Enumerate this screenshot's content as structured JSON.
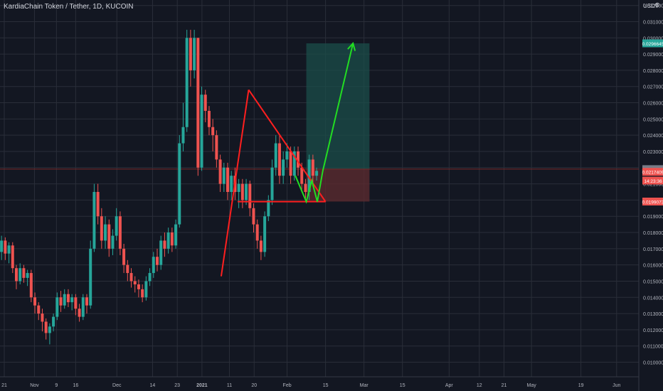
{
  "header": {
    "symbol_title": "KardiaChain Token / Tether, 1D, KUCOIN",
    "unit": "USDT",
    "settings_mark": "⚙"
  },
  "chart_data": {
    "type": "candlestick",
    "title": "KardiaChain Token / Tether, 1D, KUCOIN",
    "xlabel": "",
    "ylabel": "USDT",
    "ylim": [
      0.0095,
      0.0318
    ],
    "grid": true,
    "colors": {
      "background": "#131722",
      "grid": "#2a2e39",
      "up": "#26a69a",
      "down": "#ef5350",
      "pattern": "#ff1f1f",
      "projection": "#22dd22",
      "profit_zone": "#1b4d4a",
      "loss_zone": "#5a2a30",
      "axis_text": "#b2b5be",
      "current_price_line": "#7a2a2a"
    },
    "y_ticks": [
      "0.0320000",
      "0.0310000",
      "0.0300000",
      "0.0290000",
      "0.0280000",
      "0.0270000",
      "0.0260000",
      "0.0250000",
      "0.0240000",
      "0.0230000",
      "0.0220000",
      "0.0210000",
      "0.0200000",
      "0.0190000",
      "0.0180000",
      "0.0170000",
      "0.0160000",
      "0.0150000",
      "0.0140000",
      "0.0130000",
      "0.0120000",
      "0.0110000",
      "0.0100000"
    ],
    "x_ticks": [
      "21",
      "Nov",
      "9",
      "16",
      "Dec",
      "14",
      "23",
      "2021",
      "11",
      "20",
      "Feb",
      "15",
      "Mar",
      "15",
      "Apr",
      "12",
      "21",
      "May",
      "19",
      "Jun"
    ],
    "price_labels": [
      {
        "text": "0.0296645",
        "value": 0.0296645,
        "color": "#26a69a"
      },
      {
        "text": "0.0219082",
        "value": 0.0219082,
        "color": "#787b86"
      },
      {
        "text": "0.0217409",
        "value": 0.0217409,
        "color": "#ef5350"
      },
      {
        "text": "14:23:36",
        "value": 0.0212,
        "color": "#ef5350"
      },
      {
        "text": "0.0199073",
        "value": 0.0199073,
        "color": "#ef5350"
      }
    ],
    "candles": [
      [
        0.0168,
        0.0175,
        0.0178,
        0.0163
      ],
      [
        0.0175,
        0.0167,
        0.0177,
        0.0163
      ],
      [
        0.0167,
        0.0172,
        0.0174,
        0.0161
      ],
      [
        0.0172,
        0.0158,
        0.0174,
        0.0155
      ],
      [
        0.0158,
        0.015,
        0.016,
        0.0145
      ],
      [
        0.015,
        0.0158,
        0.0161,
        0.0148
      ],
      [
        0.0158,
        0.0152,
        0.016,
        0.0149
      ],
      [
        0.0152,
        0.0155,
        0.0157,
        0.0147
      ],
      [
        0.0155,
        0.014,
        0.0157,
        0.0137
      ],
      [
        0.014,
        0.0135,
        0.0143,
        0.013
      ],
      [
        0.0135,
        0.013,
        0.0137,
        0.0126
      ],
      [
        0.013,
        0.0125,
        0.0133,
        0.0119
      ],
      [
        0.0125,
        0.0118,
        0.0127,
        0.0114
      ],
      [
        0.0118,
        0.0122,
        0.0124,
        0.0111
      ],
      [
        0.0122,
        0.0128,
        0.013,
        0.0119
      ],
      [
        0.0128,
        0.014,
        0.0143,
        0.0126
      ],
      [
        0.014,
        0.0135,
        0.0144,
        0.0131
      ],
      [
        0.0135,
        0.0142,
        0.0145,
        0.0133
      ],
      [
        0.0142,
        0.0137,
        0.0145,
        0.0134
      ],
      [
        0.0137,
        0.014,
        0.0142,
        0.0132
      ],
      [
        0.014,
        0.0133,
        0.0142,
        0.0129
      ],
      [
        0.0133,
        0.0128,
        0.0136,
        0.0125
      ],
      [
        0.0128,
        0.014,
        0.0142,
        0.0126
      ],
      [
        0.014,
        0.0135,
        0.0142,
        0.013
      ],
      [
        0.0135,
        0.017,
        0.0175,
        0.0133
      ],
      [
        0.017,
        0.0205,
        0.021,
        0.0168
      ],
      [
        0.0205,
        0.019,
        0.021,
        0.0185
      ],
      [
        0.019,
        0.0175,
        0.0195,
        0.017
      ],
      [
        0.0175,
        0.0185,
        0.019,
        0.017
      ],
      [
        0.0185,
        0.017,
        0.0188,
        0.0165
      ],
      [
        0.017,
        0.0178,
        0.0182,
        0.0166
      ],
      [
        0.0178,
        0.019,
        0.0195,
        0.0175
      ],
      [
        0.019,
        0.017,
        0.0193,
        0.0166
      ],
      [
        0.017,
        0.016,
        0.0173,
        0.0155
      ],
      [
        0.016,
        0.0155,
        0.0163,
        0.015
      ],
      [
        0.0155,
        0.015,
        0.0158,
        0.0146
      ],
      [
        0.015,
        0.0148,
        0.0153,
        0.0143
      ],
      [
        0.0148,
        0.0145,
        0.0151,
        0.014
      ],
      [
        0.0145,
        0.014,
        0.0148,
        0.0137
      ],
      [
        0.014,
        0.015,
        0.0153,
        0.0138
      ],
      [
        0.015,
        0.0155,
        0.0158,
        0.0147
      ],
      [
        0.0155,
        0.0165,
        0.0168,
        0.0152
      ],
      [
        0.0165,
        0.016,
        0.017,
        0.0156
      ],
      [
        0.016,
        0.0175,
        0.0178,
        0.0157
      ],
      [
        0.0175,
        0.017,
        0.018,
        0.0165
      ],
      [
        0.017,
        0.018,
        0.0183,
        0.0167
      ],
      [
        0.018,
        0.0172,
        0.0183,
        0.0168
      ],
      [
        0.0172,
        0.0185,
        0.0188,
        0.017
      ],
      [
        0.0185,
        0.0235,
        0.024,
        0.0183
      ],
      [
        0.0235,
        0.0245,
        0.026,
        0.023
      ],
      [
        0.0245,
        0.03,
        0.0305,
        0.0242
      ],
      [
        0.03,
        0.028,
        0.0305,
        0.027
      ],
      [
        0.028,
        0.03,
        0.0305,
        0.0275
      ],
      [
        0.03,
        0.022,
        0.03,
        0.0215
      ],
      [
        0.022,
        0.0265,
        0.027,
        0.0218
      ],
      [
        0.0265,
        0.0255,
        0.0268,
        0.0248
      ],
      [
        0.0255,
        0.0245,
        0.0258,
        0.024
      ],
      [
        0.0245,
        0.024,
        0.025,
        0.023
      ],
      [
        0.024,
        0.0225,
        0.0243,
        0.022
      ],
      [
        0.0225,
        0.021,
        0.0228,
        0.0205
      ],
      [
        0.021,
        0.022,
        0.0223,
        0.0205
      ],
      [
        0.022,
        0.0205,
        0.0223,
        0.02
      ],
      [
        0.0205,
        0.0215,
        0.0218,
        0.02
      ],
      [
        0.0215,
        0.0205,
        0.022,
        0.02
      ],
      [
        0.0205,
        0.021,
        0.0213,
        0.0195
      ],
      [
        0.021,
        0.02,
        0.0213,
        0.0195
      ],
      [
        0.02,
        0.021,
        0.0213,
        0.0197
      ],
      [
        0.021,
        0.0195,
        0.0212,
        0.019
      ],
      [
        0.0195,
        0.0185,
        0.0198,
        0.018
      ],
      [
        0.0185,
        0.0175,
        0.0188,
        0.017
      ],
      [
        0.0175,
        0.0168,
        0.0178,
        0.0163
      ],
      [
        0.0168,
        0.019,
        0.0193,
        0.0165
      ],
      [
        0.019,
        0.02,
        0.0203,
        0.0187
      ],
      [
        0.02,
        0.022,
        0.0225,
        0.0197
      ],
      [
        0.022,
        0.0235,
        0.024,
        0.0215
      ],
      [
        0.0235,
        0.0215,
        0.024,
        0.021
      ],
      [
        0.0215,
        0.0225,
        0.023,
        0.021
      ],
      [
        0.0225,
        0.023,
        0.0235,
        0.022
      ],
      [
        0.023,
        0.0215,
        0.0233,
        0.021
      ],
      [
        0.0215,
        0.023,
        0.0233,
        0.0212
      ],
      [
        0.023,
        0.022,
        0.0233,
        0.0215
      ],
      [
        0.022,
        0.021,
        0.0223,
        0.0205
      ],
      [
        0.021,
        0.0205,
        0.0213,
        0.02
      ],
      [
        0.0205,
        0.0225,
        0.0228,
        0.02
      ],
      [
        0.0225,
        0.0215,
        0.0228,
        0.021
      ],
      [
        0.0215,
        0.0218,
        0.022,
        0.0212
      ]
    ],
    "pattern_lines": [
      {
        "name": "triangle-rising-edge",
        "points": [
          [
            "Jan 7",
            0.0153
          ],
          [
            "Jan 17",
            0.0268
          ]
        ]
      },
      {
        "name": "triangle-falling-edge",
        "points": [
          [
            "Jan 17",
            0.0268
          ],
          [
            "Feb 14",
            0.0199
          ]
        ]
      },
      {
        "name": "triangle-base",
        "points": [
          [
            "Jan 13",
            0.0199
          ],
          [
            "Feb 14",
            0.0199
          ]
        ]
      }
    ],
    "projection": [
      [
        "Feb 3",
        0.0215
      ],
      [
        "Feb 7",
        0.0199
      ],
      [
        "Feb 9",
        0.0212
      ],
      [
        "Feb 11",
        0.0199
      ],
      [
        "Feb 13",
        0.0218
      ],
      [
        "Feb 24",
        0.0296645
      ]
    ],
    "position": {
      "entry": 0.0219082,
      "target": 0.0296645,
      "stop": 0.0199073,
      "start": "Feb 7",
      "end": "Mar 2"
    }
  }
}
